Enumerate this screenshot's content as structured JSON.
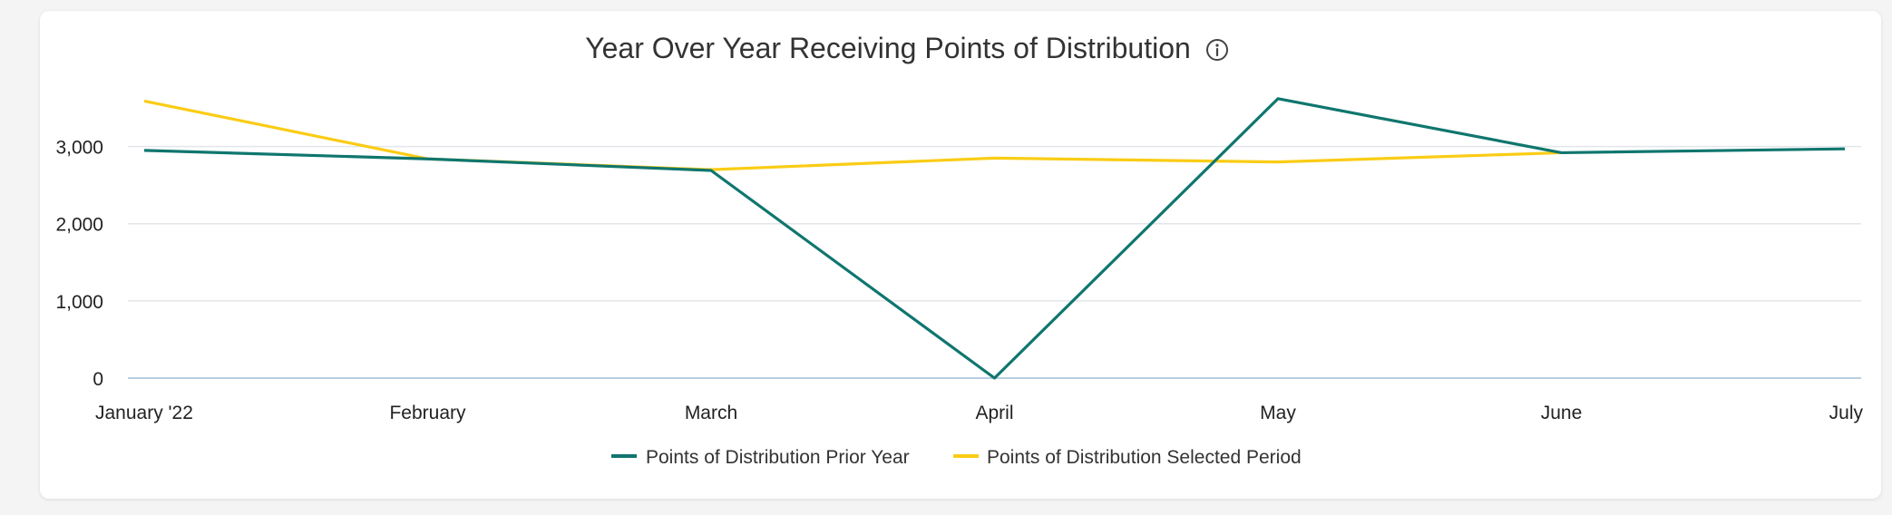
{
  "chart_data": {
    "type": "line",
    "title": "Year Over Year Receiving Points of Distribution",
    "xlabel": "",
    "ylabel": "",
    "categories": [
      "January '22",
      "February",
      "March",
      "April",
      "May",
      "June",
      "July"
    ],
    "ylim": [
      0,
      3900
    ],
    "yticks": [
      0,
      1000,
      2000,
      3000
    ],
    "ytick_labels": [
      "0",
      "1,000",
      "2,000",
      "3,000"
    ],
    "grid": true,
    "legend_position": "bottom",
    "series": [
      {
        "name": "Points of Distribution Prior Year",
        "color": "#0f766e",
        "values": [
          2950,
          2840,
          2690,
          0,
          3620,
          2920,
          2970
        ]
      },
      {
        "name": "Points of Distribution Selected Period",
        "color": "#facc15",
        "values": [
          3590,
          2840,
          2700,
          2850,
          2800,
          2920,
          null
        ]
      }
    ]
  },
  "icons": {
    "info": "info-icon"
  }
}
